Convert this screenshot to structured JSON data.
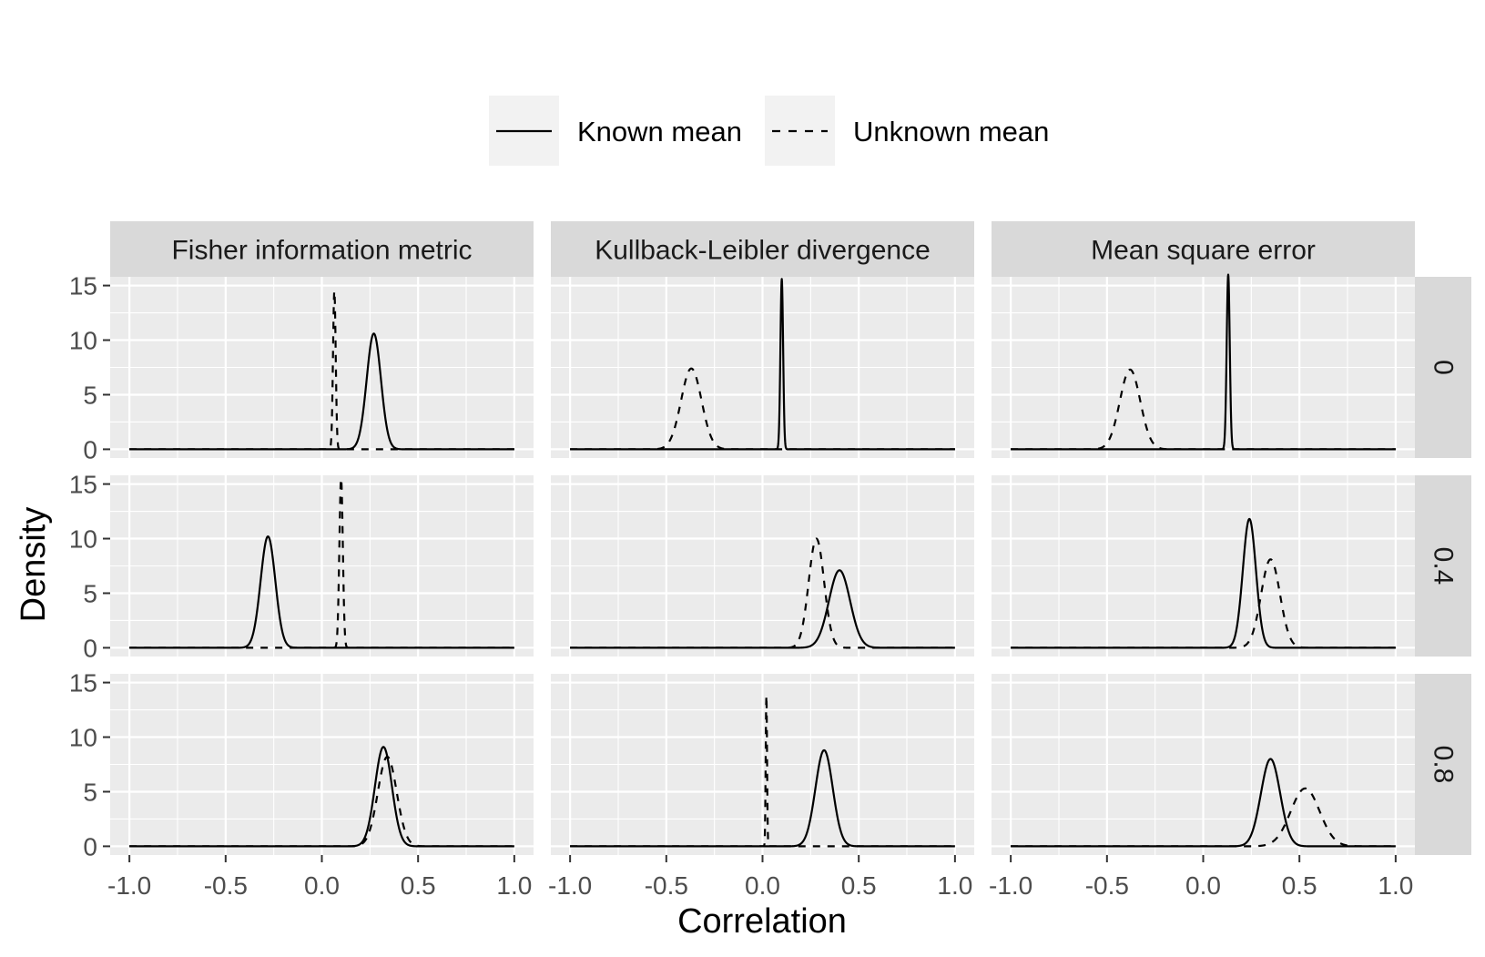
{
  "chart_data": {
    "type": "line",
    "facet_layout": "grid",
    "xlabel": "Correlation",
    "ylabel": "Density",
    "xlim": [
      -1.1,
      1.1
    ],
    "ylim": [
      -0.8,
      15.8
    ],
    "x_ticks": [
      -1.0,
      -0.5,
      0.0,
      0.5,
      1.0
    ],
    "x_tick_labels": [
      "-1.0",
      "-0.5",
      "0.0",
      "0.5",
      "1.0"
    ],
    "y_ticks": [
      0,
      5,
      10,
      15
    ],
    "y_tick_labels": [
      "0",
      "5",
      "10",
      "15"
    ],
    "grid": true,
    "legend_position": "top",
    "legend": [
      {
        "label": "Known mean",
        "linetype": "solid"
      },
      {
        "label": "Unknown mean",
        "linetype": "dashed"
      }
    ],
    "colors": {
      "panel_bg": "#ebebeb",
      "strip_bg": "#d9d9d9",
      "grid": "#ffffff",
      "line": "#000000"
    },
    "col_facets": [
      "Fisher information metric",
      "Kullback-Leibler divergence",
      "Mean square error"
    ],
    "row_facets": [
      "0",
      "0.4",
      "0.8"
    ],
    "panels": [
      {
        "col": 0,
        "row": 0,
        "series": [
          {
            "legend": "Known mean",
            "dash": false,
            "peak_x": 0.27,
            "peak_y": 10.6,
            "sd": 0.037
          },
          {
            "legend": "Unknown mean",
            "dash": true,
            "peak_x": 0.065,
            "peak_y": 14.5,
            "sd": 0.007
          }
        ]
      },
      {
        "col": 1,
        "row": 0,
        "series": [
          {
            "legend": "Known mean",
            "dash": false,
            "peak_x": 0.1,
            "peak_y": 15.6,
            "sd": 0.007
          },
          {
            "legend": "Unknown mean",
            "dash": true,
            "peak_x": -0.37,
            "peak_y": 7.4,
            "sd": 0.053
          }
        ]
      },
      {
        "col": 2,
        "row": 0,
        "series": [
          {
            "legend": "Known mean",
            "dash": false,
            "peak_x": 0.13,
            "peak_y": 16.0,
            "sd": 0.008
          },
          {
            "legend": "Unknown mean",
            "dash": true,
            "peak_x": -0.38,
            "peak_y": 7.3,
            "sd": 0.053
          }
        ]
      },
      {
        "col": 0,
        "row": 1,
        "series": [
          {
            "legend": "Known mean",
            "dash": false,
            "peak_x": -0.28,
            "peak_y": 10.2,
            "sd": 0.038
          },
          {
            "legend": "Unknown mean",
            "dash": true,
            "peak_x": 0.1,
            "peak_y": 15.5,
            "sd": 0.009
          }
        ]
      },
      {
        "col": 1,
        "row": 1,
        "series": [
          {
            "legend": "Known mean",
            "dash": false,
            "peak_x": 0.4,
            "peak_y": 7.1,
            "sd": 0.055
          },
          {
            "legend": "Unknown mean",
            "dash": true,
            "peak_x": 0.28,
            "peak_y": 10.0,
            "sd": 0.04
          }
        ]
      },
      {
        "col": 2,
        "row": 1,
        "series": [
          {
            "legend": "Known mean",
            "dash": false,
            "peak_x": 0.24,
            "peak_y": 11.8,
            "sd": 0.034
          },
          {
            "legend": "Unknown mean",
            "dash": true,
            "peak_x": 0.35,
            "peak_y": 8.1,
            "sd": 0.049
          }
        ]
      },
      {
        "col": 0,
        "row": 2,
        "series": [
          {
            "legend": "Known mean",
            "dash": false,
            "peak_x": 0.32,
            "peak_y": 9.1,
            "sd": 0.044
          },
          {
            "legend": "Unknown mean",
            "dash": true,
            "peak_x": 0.34,
            "peak_y": 8.2,
            "sd": 0.049
          }
        ]
      },
      {
        "col": 1,
        "row": 2,
        "series": [
          {
            "legend": "Known mean",
            "dash": false,
            "peak_x": 0.32,
            "peak_y": 8.8,
            "sd": 0.045
          },
          {
            "legend": "Unknown mean",
            "dash": true,
            "peak_x": 0.02,
            "peak_y": 13.8,
            "sd": 0.0035
          }
        ]
      },
      {
        "col": 2,
        "row": 2,
        "series": [
          {
            "legend": "Known mean",
            "dash": false,
            "peak_x": 0.35,
            "peak_y": 8.0,
            "sd": 0.05
          },
          {
            "legend": "Unknown mean",
            "dash": true,
            "peak_x": 0.53,
            "peak_y": 5.3,
            "sd": 0.075
          }
        ]
      }
    ]
  }
}
